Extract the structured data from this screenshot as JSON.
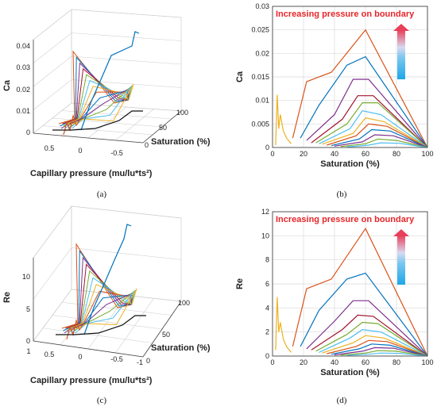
{
  "captions": [
    "(a)",
    "(b)",
    "(c)",
    "(d)"
  ],
  "colors": {
    "series": [
      "#d95319",
      "#0072bd",
      "#7e2f8e",
      "#a2142f",
      "#77ac30",
      "#4dbeee",
      "#edb120",
      "#d95319",
      "#0072bd",
      "#7e2f8e",
      "#77ac30",
      "#4dbeee",
      "#edb120",
      "#a2142f"
    ],
    "annotation": "#e8262a",
    "arrow_top": "#e8405a",
    "arrow_bottom": "#1ea6e8"
  },
  "chart_data": [
    {
      "type": "line",
      "panel": "a",
      "projection": "3d",
      "zlabel": "Ca",
      "xlabel": "Capillary pressure (mu/lu*ts²)",
      "ylabel": "Saturation (%)",
      "z_ticks": [
        "0",
        "0.01",
        "0.02",
        "0.03",
        "0.04"
      ],
      "x_ticks": [
        "0.5",
        "0",
        "-0.5"
      ],
      "y_ticks": [
        "0",
        "50",
        "100"
      ],
      "grid": true
    },
    {
      "type": "line",
      "panel": "b",
      "title": "Increasing pressure on boundary",
      "xlabel": "Saturation (%)",
      "ylabel": "Ca",
      "xlim": [
        0,
        100
      ],
      "ylim": [
        0,
        0.03
      ],
      "x_ticks": [
        "0",
        "20",
        "40",
        "60",
        "80",
        "100"
      ],
      "y_ticks": [
        "0",
        "0.005",
        "0.01",
        "0.015",
        "0.02",
        "0.025",
        "0.03"
      ],
      "grid": true,
      "series": [
        {
          "x": [
            13,
            22,
            38,
            60,
            100
          ],
          "y": [
            0.002,
            0.014,
            0.016,
            0.025,
            0
          ]
        },
        {
          "x": [
            18,
            30,
            48,
            60,
            100
          ],
          "y": [
            0.002,
            0.009,
            0.0175,
            0.0193,
            0
          ]
        },
        {
          "x": [
            22,
            40,
            52,
            62,
            100
          ],
          "y": [
            0.0015,
            0.007,
            0.0145,
            0.0145,
            0
          ]
        },
        {
          "x": [
            25,
            45,
            55,
            65,
            100
          ],
          "y": [
            0.001,
            0.006,
            0.011,
            0.011,
            0
          ]
        },
        {
          "x": [
            28,
            48,
            58,
            68,
            100
          ],
          "y": [
            0.001,
            0.005,
            0.0095,
            0.0095,
            0
          ]
        },
        {
          "x": [
            30,
            50,
            58,
            70,
            100
          ],
          "y": [
            0.0008,
            0.004,
            0.0078,
            0.007,
            0
          ]
        },
        {
          "x": [
            32,
            52,
            60,
            72,
            100
          ],
          "y": [
            0.0007,
            0.003,
            0.0063,
            0.0055,
            0
          ]
        },
        {
          "x": [
            35,
            54,
            62,
            74,
            100
          ],
          "y": [
            0.0005,
            0.0025,
            0.005,
            0.0045,
            0
          ]
        },
        {
          "x": [
            38,
            56,
            64,
            76,
            100
          ],
          "y": [
            0.0004,
            0.0018,
            0.0038,
            0.0035,
            0
          ]
        },
        {
          "x": [
            40,
            58,
            66,
            78,
            100
          ],
          "y": [
            0.0003,
            0.0012,
            0.0027,
            0.0025,
            0
          ]
        },
        {
          "x": [
            44,
            60,
            68,
            80,
            100
          ],
          "y": [
            0.0002,
            0.0008,
            0.0018,
            0.0015,
            0
          ]
        },
        {
          "x": [
            48,
            62,
            70,
            82,
            100
          ],
          "y": [
            0.0001,
            0.0005,
            0.001,
            0.0009,
            0
          ]
        },
        {
          "x": [
            2,
            3,
            4,
            5,
            7,
            9,
            12
          ],
          "y": [
            0.0005,
            0.0112,
            0.004,
            0.007,
            0.0035,
            0.002,
            0.0008
          ]
        }
      ]
    },
    {
      "type": "line",
      "panel": "c",
      "projection": "3d",
      "zlabel": "Re",
      "xlabel": "Capillary pressure (mu/lu*ts²)",
      "ylabel": "Saturation (%)",
      "z_ticks": [
        "0",
        "5",
        "10"
      ],
      "x_ticks": [
        "1",
        "0.5",
        "0",
        "-0.5",
        "-1"
      ],
      "y_ticks": [
        "0",
        "50",
        "100"
      ],
      "grid": true
    },
    {
      "type": "line",
      "panel": "d",
      "title": "Increasing pressure on boundary",
      "xlabel": "Saturation (%)",
      "ylabel": "Re",
      "xlim": [
        0,
        100
      ],
      "ylim": [
        0,
        12
      ],
      "x_ticks": [
        "0",
        "20",
        "40",
        "60",
        "80",
        "100"
      ],
      "y_ticks": [
        "0",
        "2",
        "4",
        "6",
        "8",
        "10",
        "12"
      ],
      "grid": true,
      "series": [
        {
          "x": [
            13,
            22,
            38,
            60,
            100
          ],
          "y": [
            0.8,
            5.6,
            6.4,
            10.6,
            0
          ]
        },
        {
          "x": [
            18,
            30,
            48,
            60,
            100
          ],
          "y": [
            0.8,
            3.8,
            6.4,
            6.9,
            0
          ]
        },
        {
          "x": [
            22,
            40,
            52,
            62,
            100
          ],
          "y": [
            0.6,
            2.9,
            4.6,
            4.6,
            0
          ]
        },
        {
          "x": [
            25,
            45,
            55,
            65,
            100
          ],
          "y": [
            0.5,
            2.2,
            3.4,
            3.3,
            0
          ]
        },
        {
          "x": [
            28,
            48,
            58,
            68,
            100
          ],
          "y": [
            0.4,
            1.8,
            2.8,
            2.7,
            0
          ]
        },
        {
          "x": [
            30,
            50,
            58,
            70,
            100
          ],
          "y": [
            0.3,
            1.5,
            2.2,
            2.0,
            0
          ]
        },
        {
          "x": [
            32,
            52,
            60,
            72,
            100
          ],
          "y": [
            0.25,
            1.1,
            1.7,
            1.5,
            0
          ]
        },
        {
          "x": [
            35,
            54,
            62,
            74,
            100
          ],
          "y": [
            0.2,
            0.8,
            1.3,
            1.2,
            0
          ]
        },
        {
          "x": [
            38,
            56,
            64,
            76,
            100
          ],
          "y": [
            0.15,
            0.6,
            1.0,
            0.9,
            0
          ]
        },
        {
          "x": [
            40,
            58,
            66,
            78,
            100
          ],
          "y": [
            0.1,
            0.4,
            0.7,
            0.65,
            0
          ]
        },
        {
          "x": [
            44,
            60,
            68,
            80,
            100
          ],
          "y": [
            0.08,
            0.25,
            0.45,
            0.4,
            0
          ]
        },
        {
          "x": [
            48,
            62,
            70,
            82,
            100
          ],
          "y": [
            0.05,
            0.15,
            0.25,
            0.22,
            0
          ]
        },
        {
          "x": [
            2,
            3,
            4,
            5,
            7,
            9,
            12
          ],
          "y": [
            0.5,
            4.9,
            2.0,
            2.8,
            1.4,
            0.8,
            0.3
          ]
        }
      ]
    }
  ]
}
